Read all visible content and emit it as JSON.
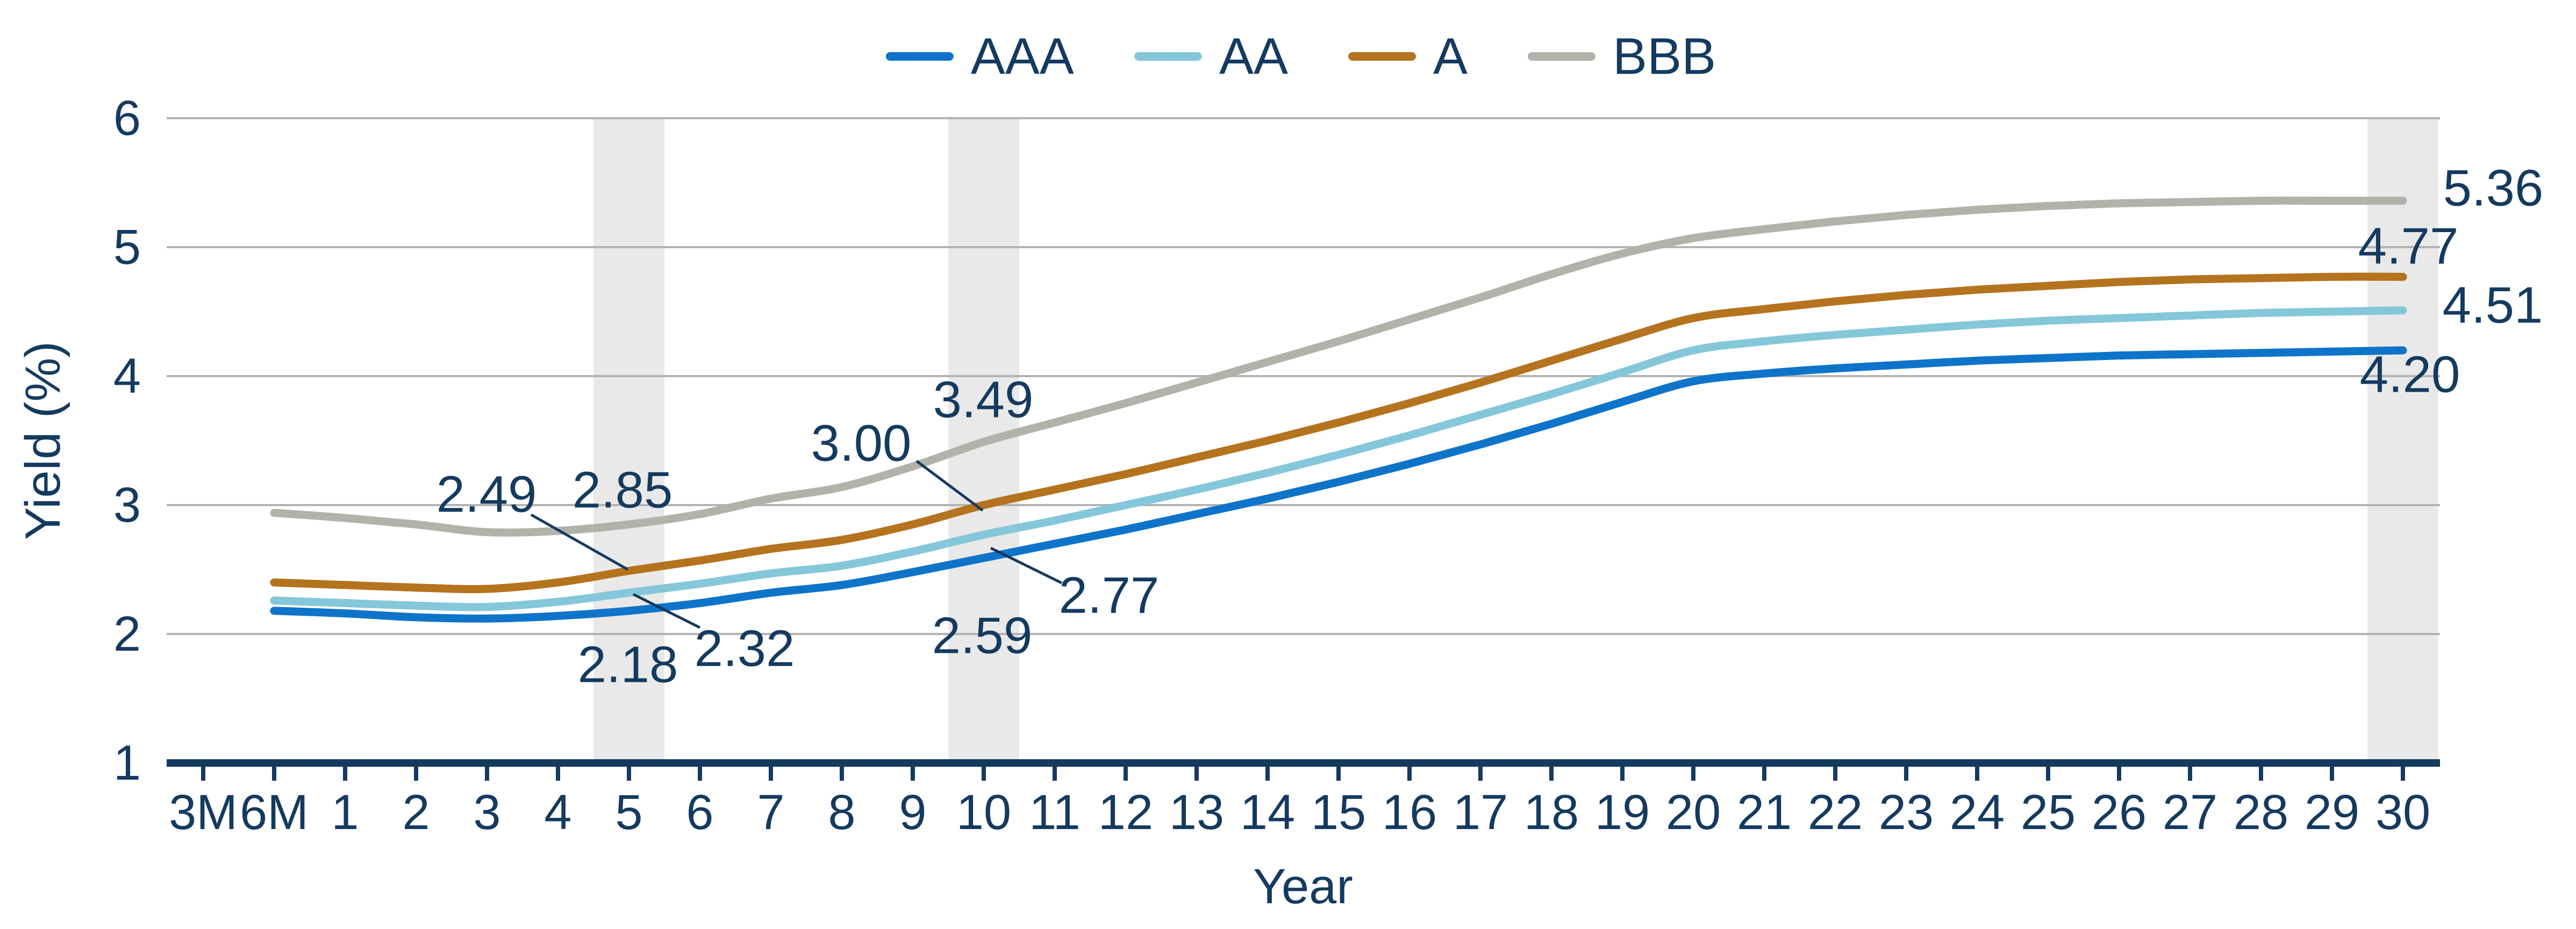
{
  "colors": {
    "text": "#143a5f",
    "axis": "#143a5f",
    "grid": "#b3b3b3",
    "band": "#e9e9e9",
    "background": "#ffffff"
  },
  "chart_data": {
    "type": "line",
    "title": "",
    "xlabel": "Year",
    "ylabel": "Yield (%)",
    "ylim": [
      1,
      6
    ],
    "yticks": [
      "1",
      "2",
      "3",
      "4",
      "5",
      "6"
    ],
    "grid": "horizontal",
    "legend_position": "top-center",
    "categories": [
      "3M",
      "6M",
      "1",
      "2",
      "3",
      "4",
      "5",
      "6",
      "7",
      "8",
      "9",
      "10",
      "11",
      "12",
      "13",
      "14",
      "15",
      "16",
      "17",
      "18",
      "19",
      "20",
      "21",
      "22",
      "23",
      "24",
      "25",
      "26",
      "27",
      "28",
      "29",
      "30"
    ],
    "highlight_bands_at": [
      "5",
      "10",
      "30"
    ],
    "series": [
      {
        "name": "AAA",
        "color": "#0e74c9",
        "values": [
          null,
          2.18,
          2.16,
          2.13,
          2.12,
          2.14,
          2.18,
          2.24,
          2.32,
          2.38,
          2.48,
          2.59,
          2.7,
          2.81,
          2.93,
          3.05,
          3.18,
          3.32,
          3.47,
          3.63,
          3.8,
          3.96,
          4.02,
          4.06,
          4.09,
          4.12,
          4.14,
          4.16,
          4.17,
          4.18,
          4.19,
          4.2
        ]
      },
      {
        "name": "AA",
        "color": "#85c7da",
        "values": [
          null,
          2.26,
          2.24,
          2.22,
          2.21,
          2.25,
          2.32,
          2.39,
          2.47,
          2.53,
          2.64,
          2.77,
          2.88,
          3.0,
          3.12,
          3.25,
          3.39,
          3.54,
          3.7,
          3.86,
          4.03,
          4.2,
          4.27,
          4.32,
          4.36,
          4.4,
          4.43,
          4.45,
          4.47,
          4.49,
          4.5,
          4.51
        ]
      },
      {
        "name": "A",
        "color": "#b5731e",
        "values": [
          null,
          2.4,
          2.38,
          2.36,
          2.35,
          2.4,
          2.49,
          2.57,
          2.66,
          2.73,
          2.85,
          3.0,
          3.12,
          3.24,
          3.37,
          3.5,
          3.64,
          3.79,
          3.95,
          4.12,
          4.29,
          4.45,
          4.52,
          4.58,
          4.63,
          4.67,
          4.7,
          4.73,
          4.75,
          4.76,
          4.77,
          4.77
        ]
      },
      {
        "name": "BBB",
        "color": "#b3b2aa",
        "values": [
          null,
          2.94,
          2.9,
          2.85,
          2.79,
          2.8,
          2.85,
          2.93,
          3.05,
          3.14,
          3.3,
          3.49,
          3.64,
          3.79,
          3.95,
          4.11,
          4.27,
          4.44,
          4.61,
          4.79,
          4.95,
          5.07,
          5.14,
          5.2,
          5.25,
          5.29,
          5.32,
          5.34,
          5.35,
          5.36,
          5.36,
          5.36
        ]
      }
    ],
    "callouts": [
      {
        "series": "AAA",
        "at": "5",
        "text": "2.18"
      },
      {
        "series": "AA",
        "at": "5",
        "text": "2.32"
      },
      {
        "series": "A",
        "at": "5",
        "text": "2.49"
      },
      {
        "series": "BBB",
        "at": "5",
        "text": "2.85"
      },
      {
        "series": "AAA",
        "at": "10",
        "text": "2.59"
      },
      {
        "series": "AA",
        "at": "10",
        "text": "2.77"
      },
      {
        "series": "A",
        "at": "10",
        "text": "3.00"
      },
      {
        "series": "BBB",
        "at": "10",
        "text": "3.49"
      }
    ],
    "end_labels": [
      {
        "series": "BBB",
        "text": "5.36"
      },
      {
        "series": "A",
        "text": "4.77"
      },
      {
        "series": "AA",
        "text": "4.51"
      },
      {
        "series": "AAA",
        "text": "4.20"
      }
    ]
  }
}
